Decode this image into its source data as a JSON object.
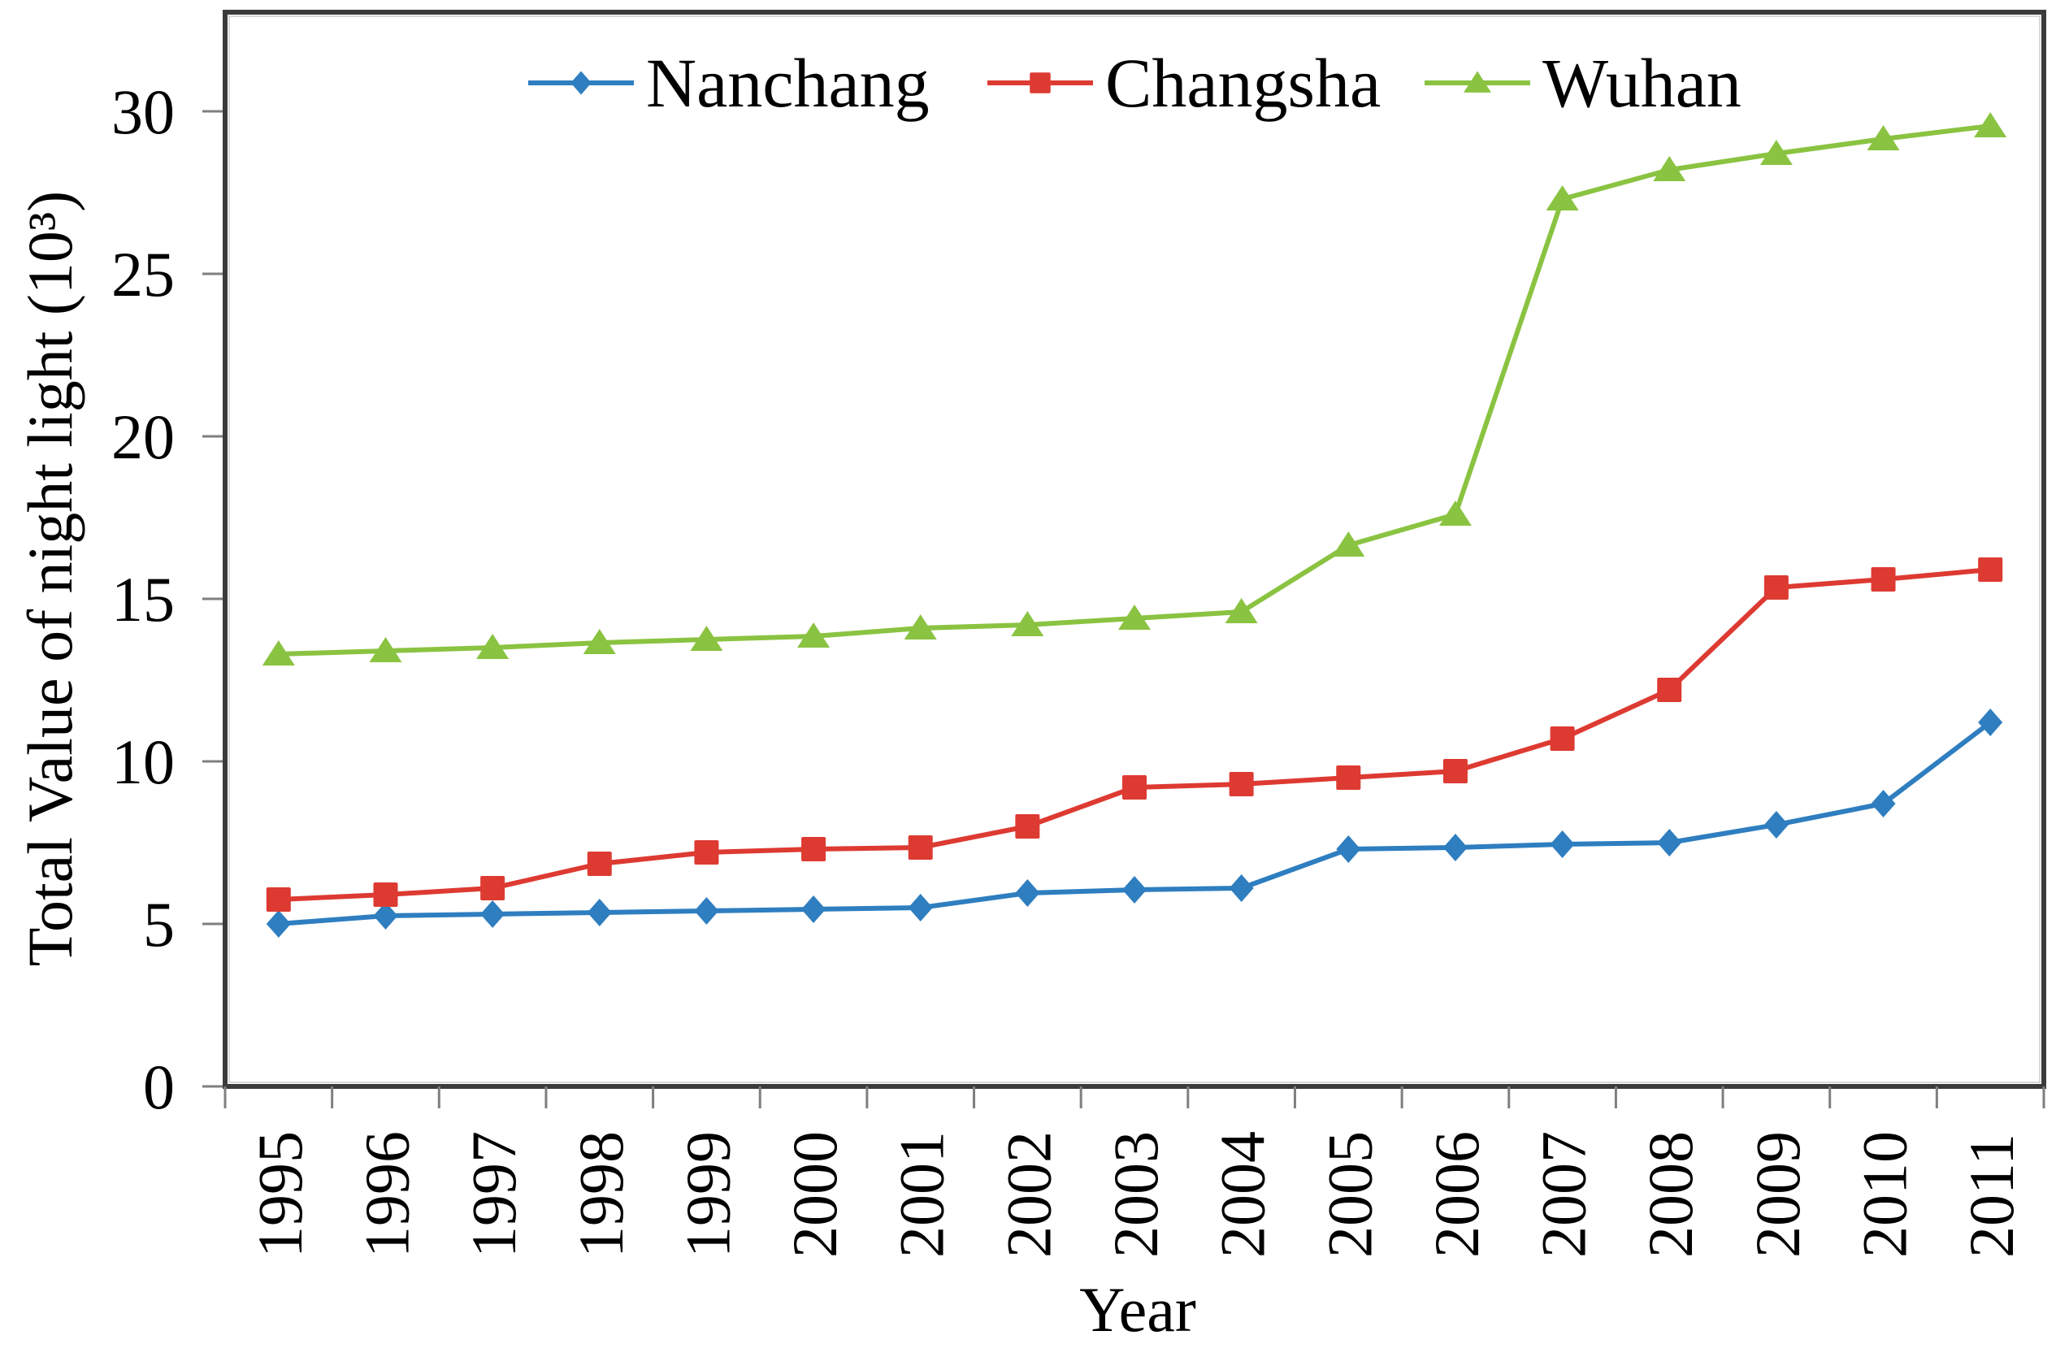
{
  "figure": {
    "background": "#ffffff",
    "frame_color": "#3b3b3b",
    "frame_inner_highlight": "#cccccc",
    "tick_color": "#7f7f7f",
    "text_color": "#000000"
  },
  "chart_data": {
    "type": "line",
    "title": "",
    "xlabel": "Year",
    "ylabel": "Total Value of night light (10³)",
    "x": [
      "1995",
      "1996",
      "1997",
      "1998",
      "1999",
      "2000",
      "2001",
      "2002",
      "2003",
      "2004",
      "2005",
      "2006",
      "2007",
      "2008",
      "2009",
      "2010",
      "2011"
    ],
    "yticks": [
      0,
      5,
      10,
      15,
      20,
      25,
      30
    ],
    "ylim": [
      0,
      33
    ],
    "grid": false,
    "legend_position": "top-inside",
    "x_tick_label_rotation_deg": 90,
    "series": [
      {
        "name": "Nanchang",
        "marker": "diamond",
        "color": "#2e7ec0",
        "values": [
          5.0,
          5.25,
          5.3,
          5.35,
          5.4,
          5.45,
          5.5,
          5.95,
          6.05,
          6.1,
          7.3,
          7.35,
          7.45,
          7.5,
          8.05,
          8.7,
          11.2
        ]
      },
      {
        "name": "Changsha",
        "marker": "square",
        "color": "#dd3a32",
        "values": [
          5.75,
          5.9,
          6.1,
          6.85,
          7.2,
          7.3,
          7.35,
          8.0,
          9.2,
          9.3,
          9.5,
          9.7,
          10.7,
          12.2,
          15.35,
          15.6,
          15.9
        ]
      },
      {
        "name": "Wuhan",
        "marker": "triangle",
        "color": "#8ac341",
        "values": [
          13.3,
          13.4,
          13.5,
          13.65,
          13.75,
          13.85,
          14.1,
          14.2,
          14.4,
          14.6,
          16.65,
          17.6,
          27.3,
          28.2,
          28.7,
          29.15,
          29.55
        ]
      }
    ]
  }
}
